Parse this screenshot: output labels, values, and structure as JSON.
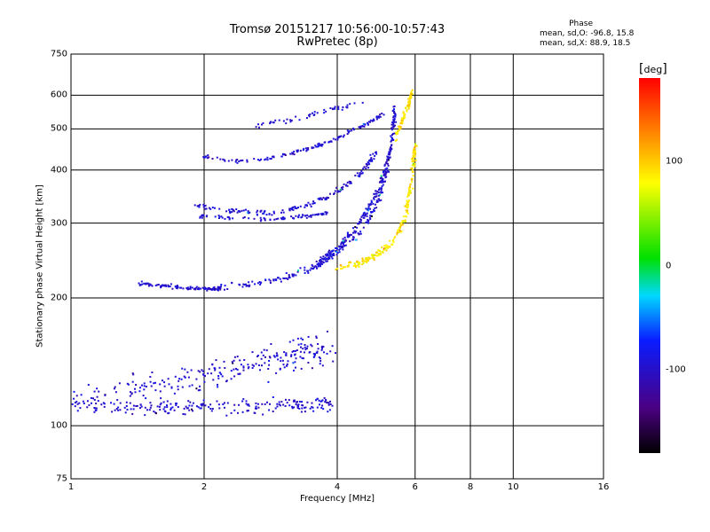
{
  "chart_data": {
    "type": "scatter",
    "title": "Tromsø 20151217 10:56:00-10:57:43",
    "subtitle": "RwPretec (8p)",
    "xlabel": "Frequency [MHz]",
    "ylabel": "Stationary phase Virtual Height [km]",
    "x_scale": "log",
    "y_scale": "log",
    "xlim": [
      1,
      16
    ],
    "ylim": [
      75,
      750
    ],
    "x_ticks": [
      1,
      2,
      4,
      6,
      8,
      10,
      16
    ],
    "y_ticks": [
      75,
      100,
      200,
      300,
      400,
      500,
      600,
      750
    ],
    "grid": true,
    "colorbar": {
      "label": "deg",
      "range": [
        -180,
        180
      ],
      "ticks": [
        100,
        0,
        -100
      ]
    },
    "phase_stats": {
      "header": "Phase",
      "o_line": "mean, sd,O: -96.8, 15.8",
      "x_line": "mean, sd,X:  88.9, 18.5",
      "o_mean": -96.8,
      "o_sd": 15.8,
      "x_mean": 88.9,
      "x_sd": 18.5
    },
    "traces": [
      {
        "mode": "O",
        "phase_mean": -96.8,
        "spread": [
          0.03,
          0.06
        ],
        "n": 220,
        "points": [
          [
            1.0,
            112
          ],
          [
            1.2,
            110
          ],
          [
            1.4,
            110
          ],
          [
            1.6,
            109
          ],
          [
            1.8,
            110
          ],
          [
            2.0,
            111
          ],
          [
            2.4,
            111
          ],
          [
            2.8,
            112
          ],
          [
            3.2,
            112
          ],
          [
            3.6,
            112
          ],
          [
            3.9,
            113
          ]
        ]
      },
      {
        "mode": "O",
        "phase_mean": -96.8,
        "spread": [
          0.06,
          0.12
        ],
        "n": 260,
        "points": [
          [
            1.0,
            115
          ],
          [
            1.4,
            122
          ],
          [
            1.8,
            128
          ],
          [
            2.2,
            135
          ],
          [
            2.6,
            140
          ],
          [
            3.0,
            145
          ],
          [
            3.4,
            150
          ],
          [
            3.9,
            150
          ]
        ]
      },
      {
        "mode": "O",
        "phase_mean": -96.8,
        "spread": [
          0.01,
          0.015
        ],
        "n": 90,
        "points": [
          [
            1.4,
            216
          ],
          [
            1.6,
            214
          ],
          [
            1.8,
            211
          ],
          [
            2.0,
            210
          ],
          [
            2.2,
            210
          ]
        ]
      },
      {
        "mode": "O",
        "phase_mean": -96.8,
        "spread": [
          0.015,
          0.025
        ],
        "n": 260,
        "points": [
          [
            2.0,
            210
          ],
          [
            2.5,
            215
          ],
          [
            3.0,
            222
          ],
          [
            3.5,
            235
          ],
          [
            4.0,
            255
          ],
          [
            4.5,
            285
          ],
          [
            4.9,
            330
          ],
          [
            5.2,
            400
          ],
          [
            5.35,
            500
          ],
          [
            5.4,
            560
          ]
        ]
      },
      {
        "mode": "O",
        "phase_mean": -96.8,
        "spread": [
          0.01,
          0.03
        ],
        "n": 170,
        "points": [
          [
            3.6,
            240
          ],
          [
            4.0,
            262
          ],
          [
            4.4,
            290
          ],
          [
            4.8,
            335
          ],
          [
            5.1,
            390
          ],
          [
            5.3,
            450
          ]
        ]
      },
      {
        "mode": "O",
        "phase_mean": -96.8,
        "spread": [
          0.015,
          0.02
        ],
        "n": 160,
        "points": [
          [
            1.9,
            330
          ],
          [
            2.2,
            322
          ],
          [
            2.6,
            318
          ],
          [
            3.0,
            320
          ],
          [
            3.4,
            330
          ],
          [
            3.8,
            345
          ],
          [
            4.2,
            370
          ],
          [
            4.6,
            400
          ],
          [
            4.9,
            440
          ]
        ]
      },
      {
        "mode": "O",
        "phase_mean": -96.8,
        "spread": [
          0.01,
          0.015
        ],
        "n": 80,
        "points": [
          [
            1.9,
            312
          ],
          [
            2.3,
            308
          ],
          [
            2.8,
            306
          ],
          [
            3.3,
            310
          ],
          [
            3.8,
            318
          ]
        ]
      },
      {
        "mode": "O",
        "phase_mean": -96.8,
        "spread": [
          0.01,
          0.015
        ],
        "n": 140,
        "points": [
          [
            2.0,
            430
          ],
          [
            2.4,
            420
          ],
          [
            2.8,
            425
          ],
          [
            3.2,
            440
          ],
          [
            3.6,
            455
          ],
          [
            4.0,
            475
          ],
          [
            4.4,
            500
          ],
          [
            4.8,
            520
          ],
          [
            5.1,
            545
          ]
        ]
      },
      {
        "mode": "O",
        "phase_mean": -96.8,
        "spread": [
          0.01,
          0.02
        ],
        "n": 50,
        "points": [
          [
            2.6,
            510
          ],
          [
            3.0,
            520
          ],
          [
            3.4,
            535
          ],
          [
            4.0,
            560
          ],
          [
            4.6,
            580
          ]
        ]
      },
      {
        "mode": "X",
        "phase_mean": 88.9,
        "spread": [
          0.015,
          0.03
        ],
        "n": 230,
        "points": [
          [
            4.0,
            235
          ],
          [
            4.5,
            242
          ],
          [
            5.0,
            255
          ],
          [
            5.4,
            275
          ],
          [
            5.7,
            310
          ],
          [
            5.85,
            360
          ],
          [
            5.95,
            420
          ],
          [
            6.0,
            460
          ]
        ]
      },
      {
        "mode": "X",
        "phase_mean": 88.9,
        "spread": [
          0.01,
          0.03
        ],
        "n": 80,
        "points": [
          [
            5.4,
            470
          ],
          [
            5.6,
            520
          ],
          [
            5.8,
            570
          ],
          [
            5.9,
            610
          ]
        ]
      }
    ]
  }
}
